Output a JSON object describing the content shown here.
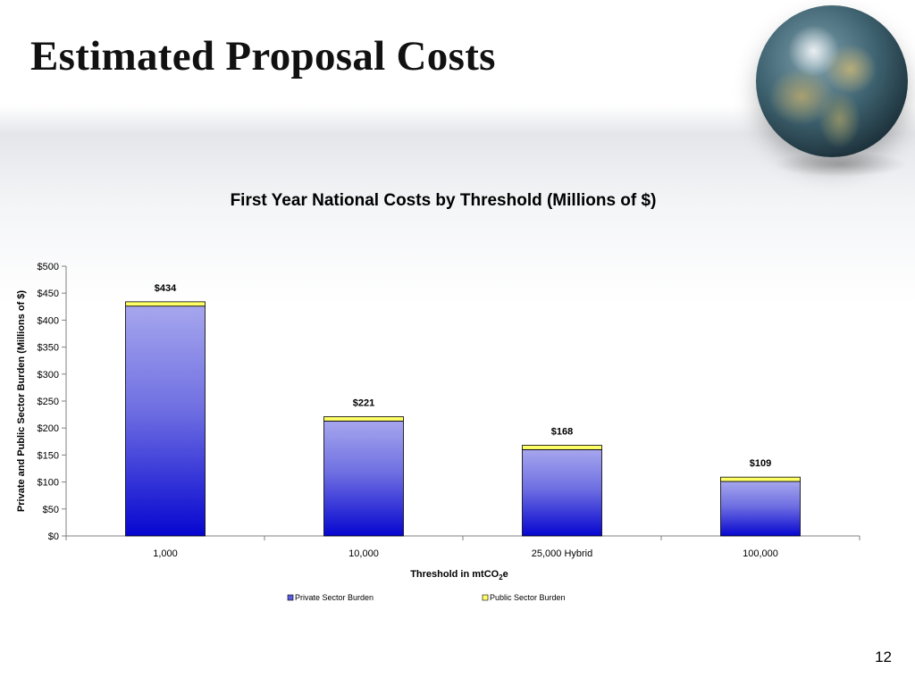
{
  "slide": {
    "title": "Estimated Proposal Costs",
    "page_number": "12"
  },
  "chart_data": {
    "type": "bar",
    "stacked": true,
    "title": "First Year National Costs by Threshold (Millions of $)",
    "xlabel_parts": [
      "Threshold in mtCO",
      "2",
      "e"
    ],
    "ylabel": "Private and Public Sector Burden (Millions of $)",
    "categories": [
      "1,000",
      "10,000",
      "25,000 Hybrid",
      "100,000"
    ],
    "series": [
      {
        "name": "Private Sector Burden",
        "values": [
          426,
          213,
          160,
          101
        ],
        "color": "#2a2ad8"
      },
      {
        "name": "Public Sector Burden",
        "values": [
          8,
          8,
          8,
          8
        ],
        "color": "#ffff66"
      }
    ],
    "totals_labels": [
      "$434",
      "$221",
      "$168",
      "$109"
    ],
    "totals": [
      434,
      221,
      168,
      109
    ],
    "yticks": [
      "$0",
      "$50",
      "$100",
      "$150",
      "$200",
      "$250",
      "$300",
      "$350",
      "$400",
      "$450",
      "$500"
    ],
    "ylim": [
      0,
      500
    ],
    "grid": false,
    "legend_position": "bottom"
  }
}
